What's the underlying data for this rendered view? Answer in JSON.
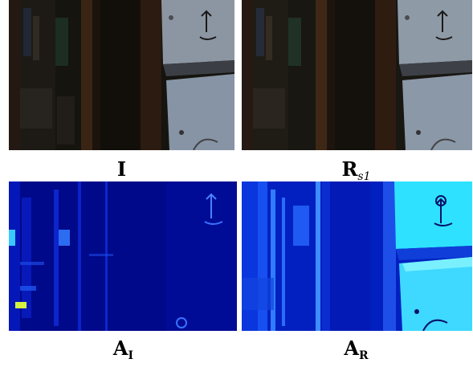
{
  "figure": {
    "panels": [
      {
        "id": "I",
        "label_main": "I",
        "label_sub": ""
      },
      {
        "id": "Rs1",
        "label_main": "R",
        "label_sub": "s1"
      },
      {
        "id": "AI",
        "label_main": "A",
        "label_sub": "I"
      },
      {
        "id": "AR",
        "label_main": "A",
        "label_sub": "R"
      }
    ]
  },
  "colors": {
    "photo_dark": "#1a1a16",
    "photo_wood": "#2b1a0f",
    "cabinet_grey": "#8b98a8",
    "heatmap_dark": "#000a8a",
    "heatmap_mid": "#0a2fd8",
    "heatmap_bright": "#3fe6ff"
  }
}
